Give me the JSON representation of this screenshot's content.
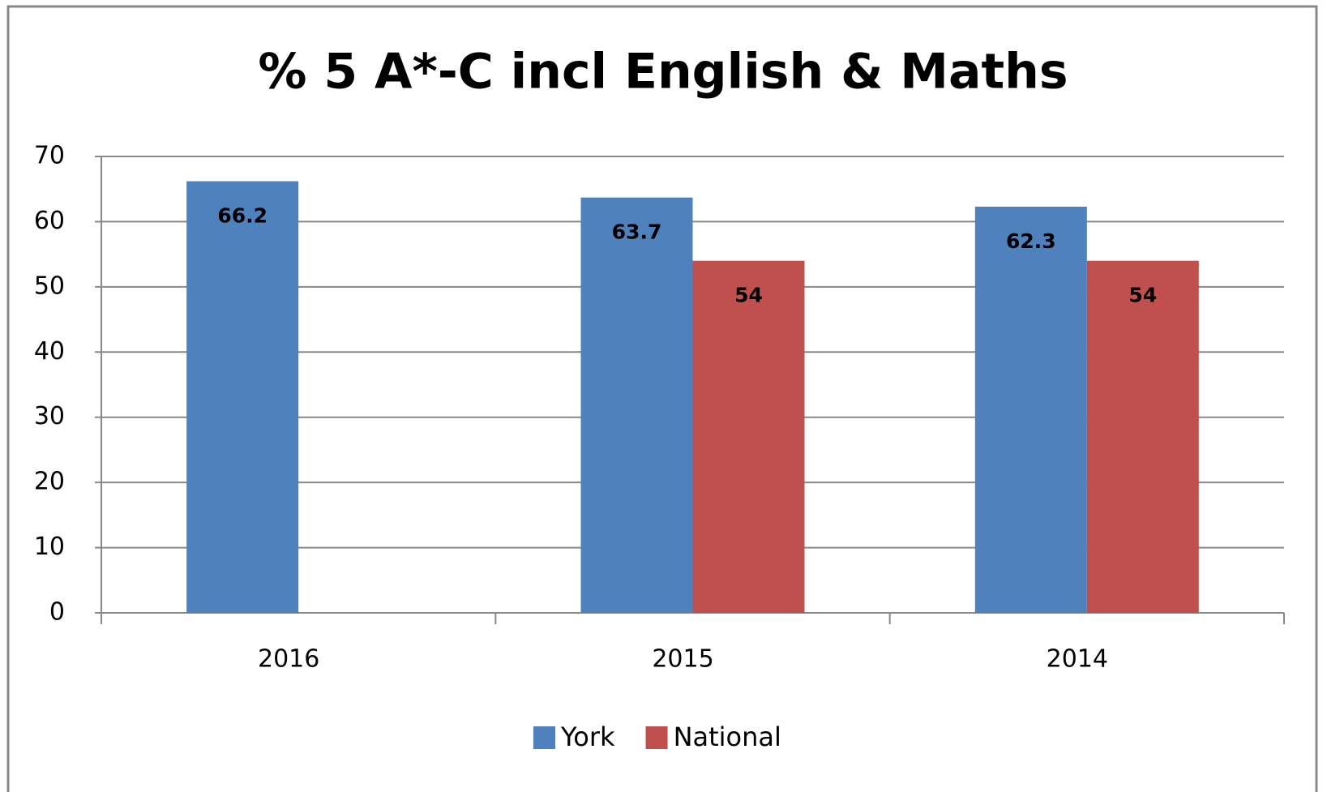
{
  "chart_data": {
    "type": "bar",
    "title": "% 5 A*-C incl English & Maths",
    "categories": [
      "2016",
      "2015",
      "2014"
    ],
    "series": [
      {
        "name": "York",
        "color": "#4f81bd",
        "values": [
          66.2,
          63.7,
          62.3
        ]
      },
      {
        "name": "National",
        "color": "#c0504d",
        "values": [
          null,
          54,
          54
        ]
      }
    ],
    "ylim": [
      0,
      70
    ],
    "yticks": [
      0,
      10,
      20,
      30,
      40,
      50,
      60,
      70
    ],
    "grid": true,
    "legend": "bottom"
  }
}
